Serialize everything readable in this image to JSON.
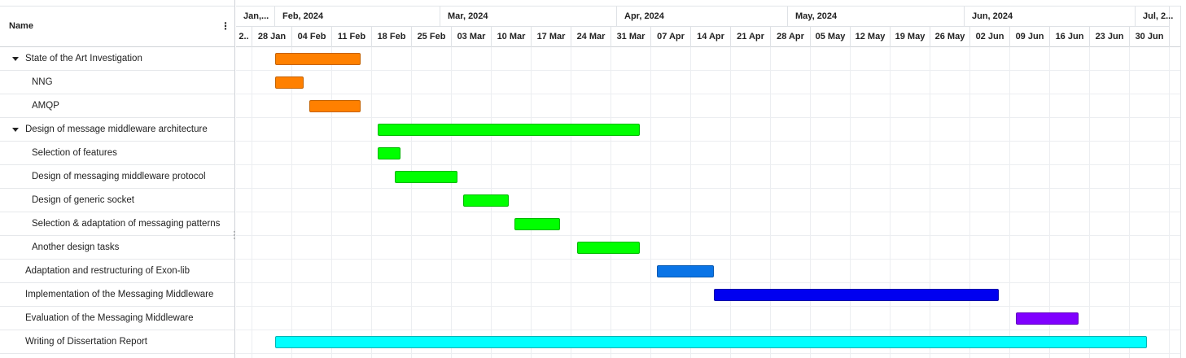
{
  "grid": {
    "header_name": "Name",
    "menu_icon": "vertical-dots-icon",
    "rows": [
      {
        "label": "State of the Art Investigation",
        "level": 0,
        "expandable": true
      },
      {
        "label": "NNG",
        "level": 1,
        "expandable": false
      },
      {
        "label": "AMQP",
        "level": 1,
        "expandable": false
      },
      {
        "label": "Design of message middleware architecture",
        "level": 0,
        "expandable": true
      },
      {
        "label": "Selection of features",
        "level": 1,
        "expandable": false
      },
      {
        "label": "Design of messaging middleware protocol",
        "level": 1,
        "expandable": false
      },
      {
        "label": "Design of generic socket",
        "level": 1,
        "expandable": false
      },
      {
        "label": "Selection & adaptation of messaging patterns",
        "level": 1,
        "expandable": false
      },
      {
        "label": "Another design tasks",
        "level": 1,
        "expandable": false
      },
      {
        "label": "Adaptation and restructuring of Exon-lib",
        "level": 0,
        "expandable": false
      },
      {
        "label": "Implementation of the Messaging Middleware",
        "level": 0,
        "expandable": false
      },
      {
        "label": "Evaluation of the Messaging Middleware",
        "level": 0,
        "expandable": false
      },
      {
        "label": "Writing of Dissertation Report",
        "level": 0,
        "expandable": false
      }
    ]
  },
  "chart_data": {
    "type": "gantt",
    "scale_start": "2024-01-21",
    "scale_end": "2024-07-07",
    "months": [
      "Jan,...",
      "Feb, 2024",
      "Mar, 2024",
      "Apr, 2024",
      "May, 2024",
      "Jun, 2024",
      "Jul, 2..."
    ],
    "weeks": [
      "2..",
      "28 Jan",
      "04 Feb",
      "11 Feb",
      "18 Feb",
      "25 Feb",
      "03 Mar",
      "10 Mar",
      "17 Mar",
      "24 Mar",
      "31 Mar",
      "07 Apr",
      "14 Apr",
      "21 Apr",
      "28 Apr",
      "05 May",
      "12 May",
      "19 May",
      "26 May",
      "02 Jun",
      "09 Jun",
      "16 Jun",
      "23 Jun",
      "30 Jun"
    ],
    "tasks": [
      {
        "name": "State of the Art Investigation",
        "start": "2024-02-01",
        "end": "2024-02-16",
        "color": "#ff8000",
        "border": "#c46200"
      },
      {
        "name": "NNG",
        "start": "2024-02-01",
        "end": "2024-02-06",
        "color": "#ff8000",
        "border": "#c46200"
      },
      {
        "name": "AMQP",
        "start": "2024-02-07",
        "end": "2024-02-16",
        "color": "#ff8000",
        "border": "#c46200"
      },
      {
        "name": "Design of message middleware architecture",
        "start": "2024-02-19",
        "end": "2024-04-05",
        "color": "#00ff00",
        "border": "#00b800"
      },
      {
        "name": "Selection of features",
        "start": "2024-02-19",
        "end": "2024-02-23",
        "color": "#00ff00",
        "border": "#00b800"
      },
      {
        "name": "Design of messaging middleware protocol",
        "start": "2024-02-22",
        "end": "2024-03-04",
        "color": "#00ff00",
        "border": "#00b800"
      },
      {
        "name": "Design of generic socket",
        "start": "2024-03-05",
        "end": "2024-03-13",
        "color": "#00ff00",
        "border": "#00b800"
      },
      {
        "name": "Selection & adaptation of messaging patterns",
        "start": "2024-03-14",
        "end": "2024-03-22",
        "color": "#00ff00",
        "border": "#00b800"
      },
      {
        "name": "Another design tasks",
        "start": "2024-03-25",
        "end": "2024-04-05",
        "color": "#00ff00",
        "border": "#00b800"
      },
      {
        "name": "Adaptation and restructuring of Exon-lib",
        "start": "2024-04-08",
        "end": "2024-04-18",
        "color": "#0a74e6",
        "border": "#0858b0"
      },
      {
        "name": "Implementation of the Messaging Middleware",
        "start": "2024-04-18",
        "end": "2024-06-07",
        "color": "#0000f0",
        "border": "#0000a8"
      },
      {
        "name": "Evaluation of the Messaging Middleware",
        "start": "2024-06-10",
        "end": "2024-06-21",
        "color": "#8000ff",
        "border": "#5e00bc"
      },
      {
        "name": "Writing of Dissertation Report",
        "start": "2024-02-01",
        "end": "2024-07-03",
        "color": "#00ffff",
        "border": "#00b4b4"
      }
    ]
  }
}
